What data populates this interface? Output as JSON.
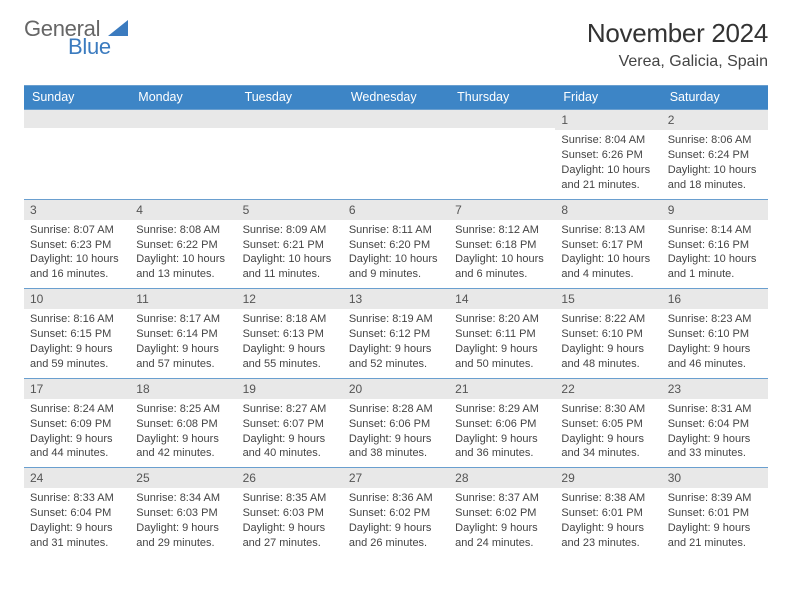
{
  "brand": {
    "line1": "General",
    "line2": "Blue"
  },
  "title": "November 2024",
  "location": "Verea, Galicia, Spain",
  "day_names": [
    "Sunday",
    "Monday",
    "Tuesday",
    "Wednesday",
    "Thursday",
    "Friday",
    "Saturday"
  ],
  "colors": {
    "header_bg": "#3d85c6",
    "header_text": "#ffffff",
    "rule": "#6a9fcf",
    "daynum_bg": "#e8e8e8",
    "text": "#444444",
    "brand_blue": "#3b7bbf"
  },
  "weeks": [
    [
      {
        "n": "",
        "sunrise": "",
        "sunset": "",
        "daylight": ""
      },
      {
        "n": "",
        "sunrise": "",
        "sunset": "",
        "daylight": ""
      },
      {
        "n": "",
        "sunrise": "",
        "sunset": "",
        "daylight": ""
      },
      {
        "n": "",
        "sunrise": "",
        "sunset": "",
        "daylight": ""
      },
      {
        "n": "",
        "sunrise": "",
        "sunset": "",
        "daylight": ""
      },
      {
        "n": "1",
        "sunrise": "Sunrise: 8:04 AM",
        "sunset": "Sunset: 6:26 PM",
        "daylight": "Daylight: 10 hours and 21 minutes."
      },
      {
        "n": "2",
        "sunrise": "Sunrise: 8:06 AM",
        "sunset": "Sunset: 6:24 PM",
        "daylight": "Daylight: 10 hours and 18 minutes."
      }
    ],
    [
      {
        "n": "3",
        "sunrise": "Sunrise: 8:07 AM",
        "sunset": "Sunset: 6:23 PM",
        "daylight": "Daylight: 10 hours and 16 minutes."
      },
      {
        "n": "4",
        "sunrise": "Sunrise: 8:08 AM",
        "sunset": "Sunset: 6:22 PM",
        "daylight": "Daylight: 10 hours and 13 minutes."
      },
      {
        "n": "5",
        "sunrise": "Sunrise: 8:09 AM",
        "sunset": "Sunset: 6:21 PM",
        "daylight": "Daylight: 10 hours and 11 minutes."
      },
      {
        "n": "6",
        "sunrise": "Sunrise: 8:11 AM",
        "sunset": "Sunset: 6:20 PM",
        "daylight": "Daylight: 10 hours and 9 minutes."
      },
      {
        "n": "7",
        "sunrise": "Sunrise: 8:12 AM",
        "sunset": "Sunset: 6:18 PM",
        "daylight": "Daylight: 10 hours and 6 minutes."
      },
      {
        "n": "8",
        "sunrise": "Sunrise: 8:13 AM",
        "sunset": "Sunset: 6:17 PM",
        "daylight": "Daylight: 10 hours and 4 minutes."
      },
      {
        "n": "9",
        "sunrise": "Sunrise: 8:14 AM",
        "sunset": "Sunset: 6:16 PM",
        "daylight": "Daylight: 10 hours and 1 minute."
      }
    ],
    [
      {
        "n": "10",
        "sunrise": "Sunrise: 8:16 AM",
        "sunset": "Sunset: 6:15 PM",
        "daylight": "Daylight: 9 hours and 59 minutes."
      },
      {
        "n": "11",
        "sunrise": "Sunrise: 8:17 AM",
        "sunset": "Sunset: 6:14 PM",
        "daylight": "Daylight: 9 hours and 57 minutes."
      },
      {
        "n": "12",
        "sunrise": "Sunrise: 8:18 AM",
        "sunset": "Sunset: 6:13 PM",
        "daylight": "Daylight: 9 hours and 55 minutes."
      },
      {
        "n": "13",
        "sunrise": "Sunrise: 8:19 AM",
        "sunset": "Sunset: 6:12 PM",
        "daylight": "Daylight: 9 hours and 52 minutes."
      },
      {
        "n": "14",
        "sunrise": "Sunrise: 8:20 AM",
        "sunset": "Sunset: 6:11 PM",
        "daylight": "Daylight: 9 hours and 50 minutes."
      },
      {
        "n": "15",
        "sunrise": "Sunrise: 8:22 AM",
        "sunset": "Sunset: 6:10 PM",
        "daylight": "Daylight: 9 hours and 48 minutes."
      },
      {
        "n": "16",
        "sunrise": "Sunrise: 8:23 AM",
        "sunset": "Sunset: 6:10 PM",
        "daylight": "Daylight: 9 hours and 46 minutes."
      }
    ],
    [
      {
        "n": "17",
        "sunrise": "Sunrise: 8:24 AM",
        "sunset": "Sunset: 6:09 PM",
        "daylight": "Daylight: 9 hours and 44 minutes."
      },
      {
        "n": "18",
        "sunrise": "Sunrise: 8:25 AM",
        "sunset": "Sunset: 6:08 PM",
        "daylight": "Daylight: 9 hours and 42 minutes."
      },
      {
        "n": "19",
        "sunrise": "Sunrise: 8:27 AM",
        "sunset": "Sunset: 6:07 PM",
        "daylight": "Daylight: 9 hours and 40 minutes."
      },
      {
        "n": "20",
        "sunrise": "Sunrise: 8:28 AM",
        "sunset": "Sunset: 6:06 PM",
        "daylight": "Daylight: 9 hours and 38 minutes."
      },
      {
        "n": "21",
        "sunrise": "Sunrise: 8:29 AM",
        "sunset": "Sunset: 6:06 PM",
        "daylight": "Daylight: 9 hours and 36 minutes."
      },
      {
        "n": "22",
        "sunrise": "Sunrise: 8:30 AM",
        "sunset": "Sunset: 6:05 PM",
        "daylight": "Daylight: 9 hours and 34 minutes."
      },
      {
        "n": "23",
        "sunrise": "Sunrise: 8:31 AM",
        "sunset": "Sunset: 6:04 PM",
        "daylight": "Daylight: 9 hours and 33 minutes."
      }
    ],
    [
      {
        "n": "24",
        "sunrise": "Sunrise: 8:33 AM",
        "sunset": "Sunset: 6:04 PM",
        "daylight": "Daylight: 9 hours and 31 minutes."
      },
      {
        "n": "25",
        "sunrise": "Sunrise: 8:34 AM",
        "sunset": "Sunset: 6:03 PM",
        "daylight": "Daylight: 9 hours and 29 minutes."
      },
      {
        "n": "26",
        "sunrise": "Sunrise: 8:35 AM",
        "sunset": "Sunset: 6:03 PM",
        "daylight": "Daylight: 9 hours and 27 minutes."
      },
      {
        "n": "27",
        "sunrise": "Sunrise: 8:36 AM",
        "sunset": "Sunset: 6:02 PM",
        "daylight": "Daylight: 9 hours and 26 minutes."
      },
      {
        "n": "28",
        "sunrise": "Sunrise: 8:37 AM",
        "sunset": "Sunset: 6:02 PM",
        "daylight": "Daylight: 9 hours and 24 minutes."
      },
      {
        "n": "29",
        "sunrise": "Sunrise: 8:38 AM",
        "sunset": "Sunset: 6:01 PM",
        "daylight": "Daylight: 9 hours and 23 minutes."
      },
      {
        "n": "30",
        "sunrise": "Sunrise: 8:39 AM",
        "sunset": "Sunset: 6:01 PM",
        "daylight": "Daylight: 9 hours and 21 minutes."
      }
    ]
  ]
}
